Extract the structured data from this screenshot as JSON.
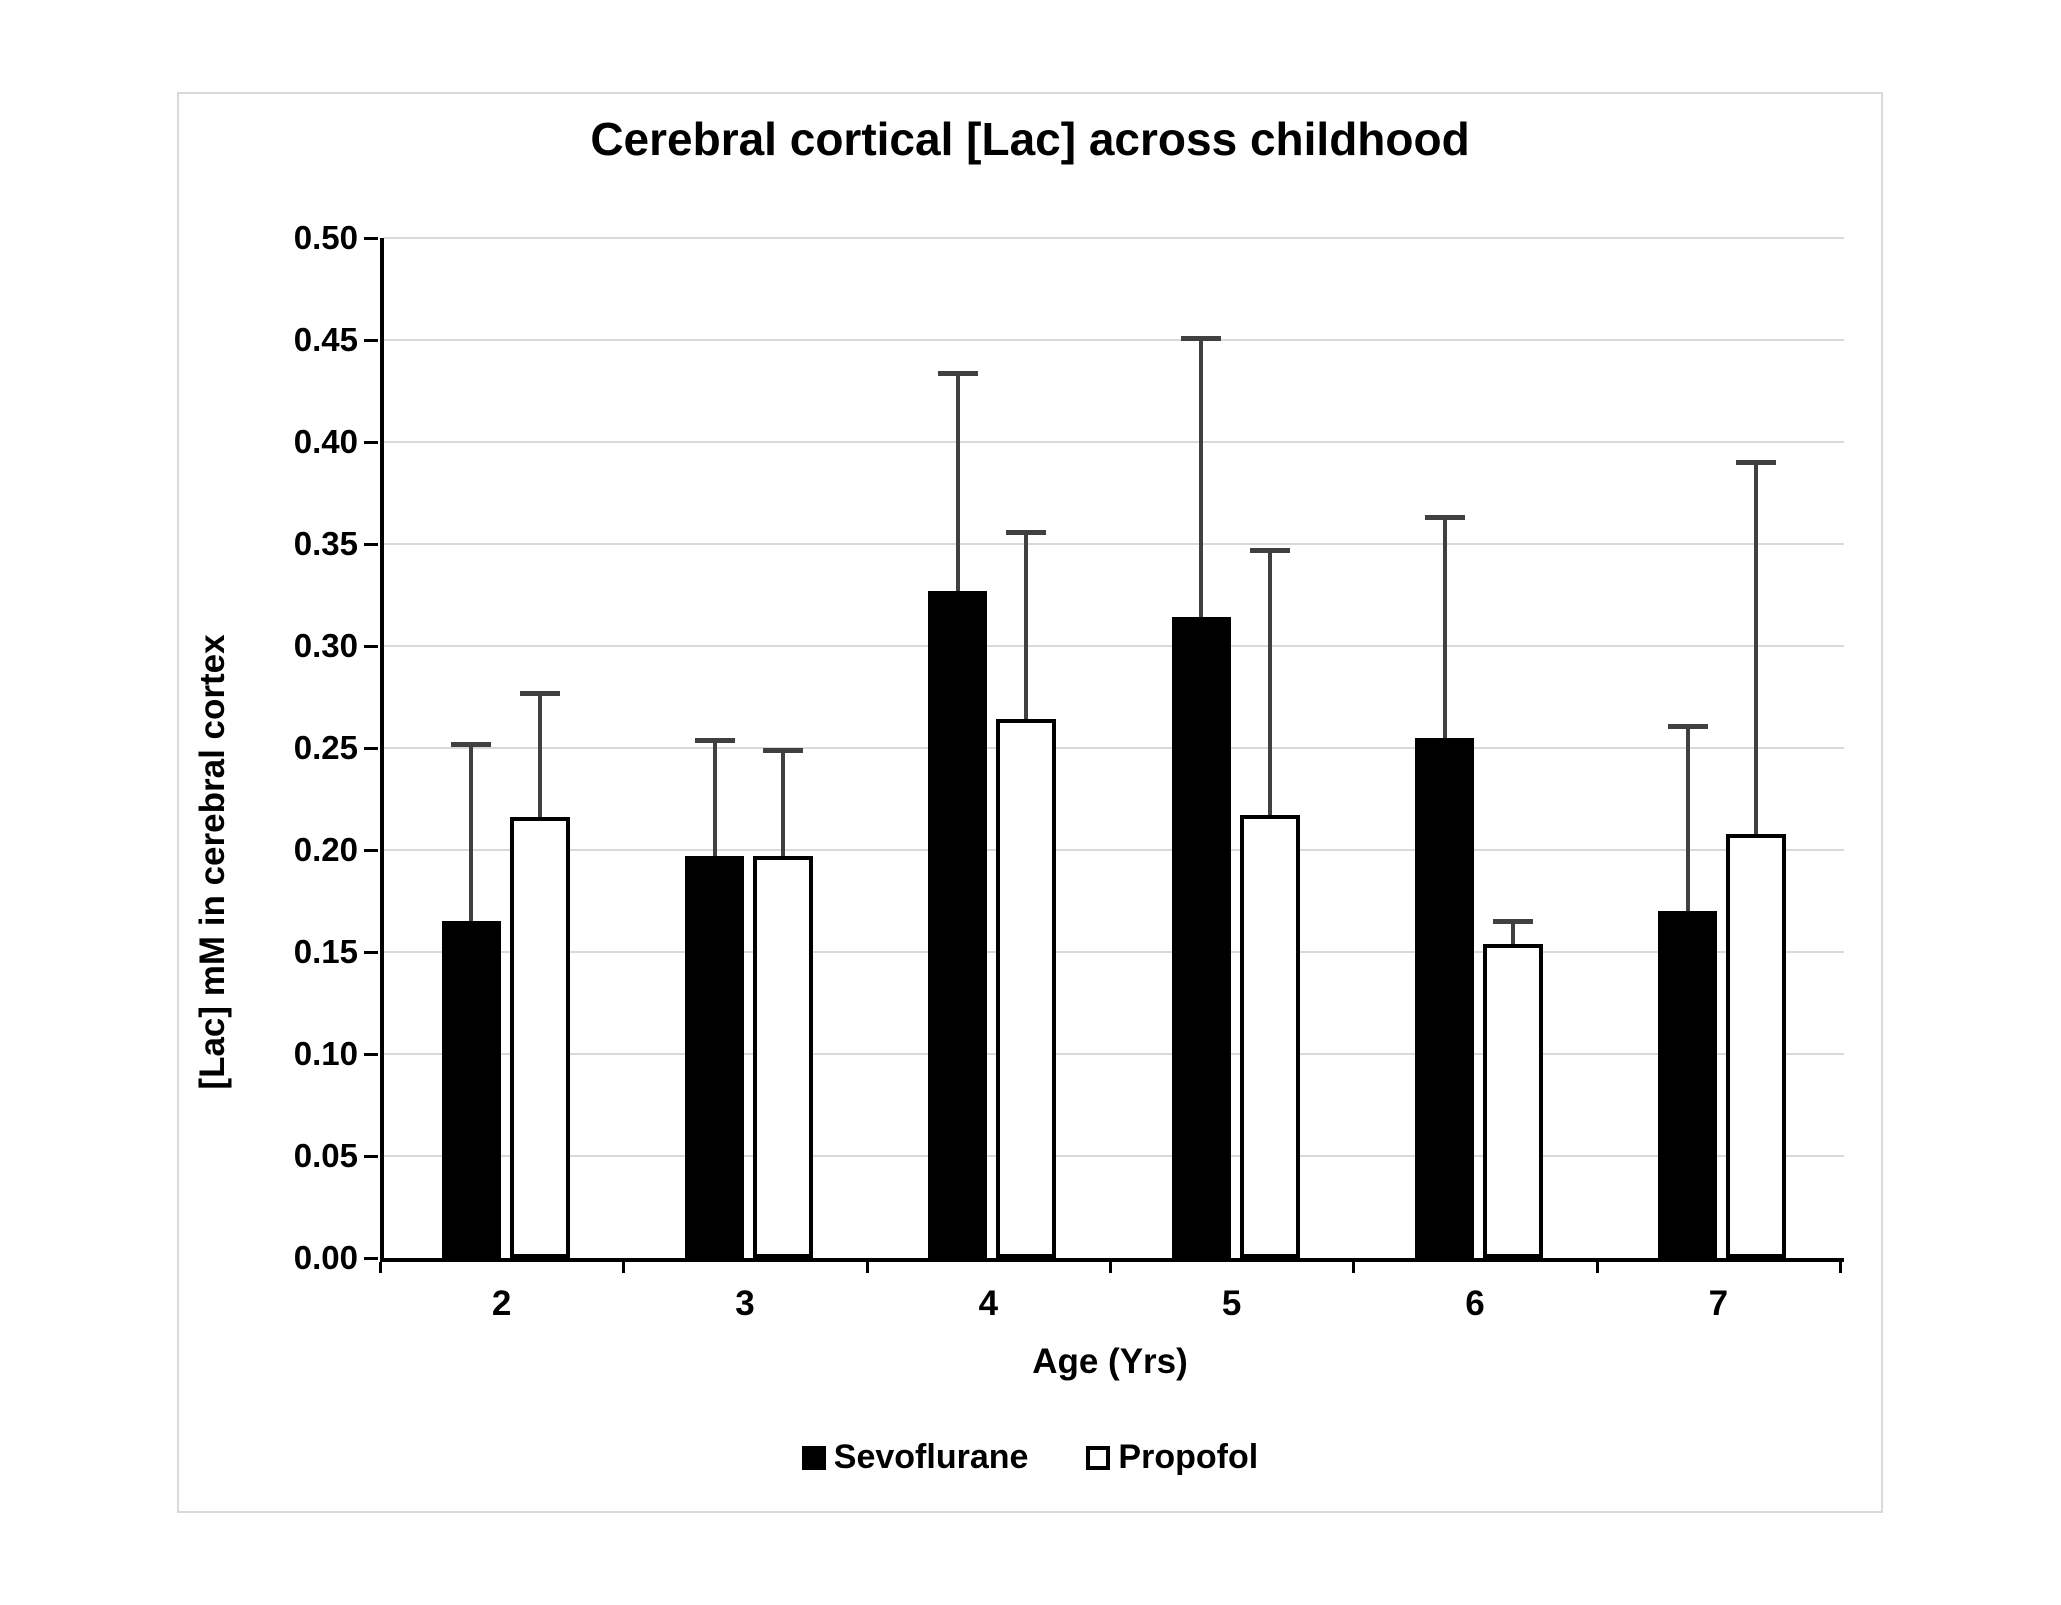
{
  "chart_data": {
    "type": "bar",
    "title": "Cerebral cortical [Lac] across childhood",
    "xlabel": "Age (Yrs)",
    "ylabel": "[Lac] mM in cerebral cortex",
    "categories": [
      "2",
      "3",
      "4",
      "5",
      "6",
      "7"
    ],
    "series": [
      {
        "name": "Sevoflurane",
        "style": "filled",
        "fill": "#000000",
        "values": [
          0.165,
          0.197,
          0.327,
          0.314,
          0.255,
          0.17
        ],
        "errors_plus": [
          0.087,
          0.057,
          0.107,
          0.137,
          0.108,
          0.091
        ]
      },
      {
        "name": "Propofol",
        "style": "open",
        "fill": "#ffffff",
        "values": [
          0.216,
          0.197,
          0.264,
          0.217,
          0.154,
          0.208
        ],
        "errors_plus": [
          0.061,
          0.052,
          0.092,
          0.13,
          0.011,
          0.182
        ]
      }
    ],
    "ylim": [
      0.0,
      0.5
    ],
    "ytick_step": 0.05,
    "ytick_format_decimals": 2,
    "grid": true,
    "legend_position": "bottom",
    "colors": {
      "bar_fill": "#000000",
      "bar_open_fill": "#ffffff",
      "gridline": "#d9d9d9",
      "axis": "#000000",
      "error_bar": "#404040",
      "chart_border": "#d9d9d9",
      "background": "#ffffff",
      "text": "#000000"
    }
  }
}
